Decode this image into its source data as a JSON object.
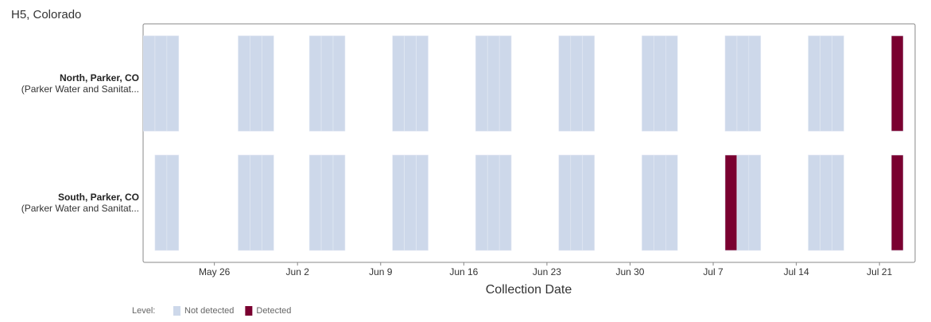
{
  "chart_data": {
    "type": "timeline-heatmap",
    "title": "H5, Colorado",
    "x_label": "Collection Date",
    "xlim": [
      "May 20",
      "Jul 24"
    ],
    "xticks": [
      "May 26",
      "Jun 2",
      "Jun 9",
      "Jun 16",
      "Jun 23",
      "Jun 30",
      "Jul 7",
      "Jul 14",
      "Jul 21"
    ],
    "legend_title": "Level:",
    "levels": [
      {
        "name": "Not detected",
        "color": "#cdd8ea"
      },
      {
        "name": "Detected",
        "color": "#7a0030"
      }
    ],
    "rows": [
      {
        "name": "North, Parker, CO",
        "subtitle": "(Parker Water and Sanitat...",
        "x": [
          "May 20",
          "May 21",
          "May 22",
          "May 28",
          "May 29",
          "May 30",
          "Jun 3",
          "Jun 4",
          "Jun 5",
          "Jun 10",
          "Jun 11",
          "Jun 12",
          "Jun 17",
          "Jun 18",
          "Jun 19",
          "Jun 24",
          "Jun 25",
          "Jun 26",
          "Jul 1",
          "Jul 2",
          "Jul 3",
          "Jul 8",
          "Jul 9",
          "Jul 10",
          "Jul 15",
          "Jul 16",
          "Jul 17",
          "Jul 22"
        ],
        "values": [
          "Not detected",
          "Not detected",
          "Not detected",
          "Not detected",
          "Not detected",
          "Not detected",
          "Not detected",
          "Not detected",
          "Not detected",
          "Not detected",
          "Not detected",
          "Not detected",
          "Not detected",
          "Not detected",
          "Not detected",
          "Not detected",
          "Not detected",
          "Not detected",
          "Not detected",
          "Not detected",
          "Not detected",
          "Not detected",
          "Not detected",
          "Not detected",
          "Not detected",
          "Not detected",
          "Not detected",
          "Detected"
        ]
      },
      {
        "name": "South, Parker, CO",
        "subtitle": "(Parker Water and Sanitat...",
        "x": [
          "May 21",
          "May 22",
          "May 28",
          "May 29",
          "May 30",
          "Jun 3",
          "Jun 4",
          "Jun 5",
          "Jun 10",
          "Jun 11",
          "Jun 12",
          "Jun 17",
          "Jun 18",
          "Jun 19",
          "Jun 24",
          "Jun 25",
          "Jun 26",
          "Jul 1",
          "Jul 2",
          "Jul 3",
          "Jul 8",
          "Jul 9",
          "Jul 10",
          "Jul 15",
          "Jul 16",
          "Jul 17",
          "Jul 22"
        ],
        "values": [
          "Not detected",
          "Not detected",
          "Not detected",
          "Not detected",
          "Not detected",
          "Not detected",
          "Not detected",
          "Not detected",
          "Not detected",
          "Not detected",
          "Not detected",
          "Not detected",
          "Not detected",
          "Not detected",
          "Not detected",
          "Not detected",
          "Not detected",
          "Not detected",
          "Not detected",
          "Not detected",
          "Detected",
          "Not detected",
          "Not detected",
          "Not detected",
          "Not detected",
          "Not detected",
          "Detected"
        ]
      }
    ]
  }
}
